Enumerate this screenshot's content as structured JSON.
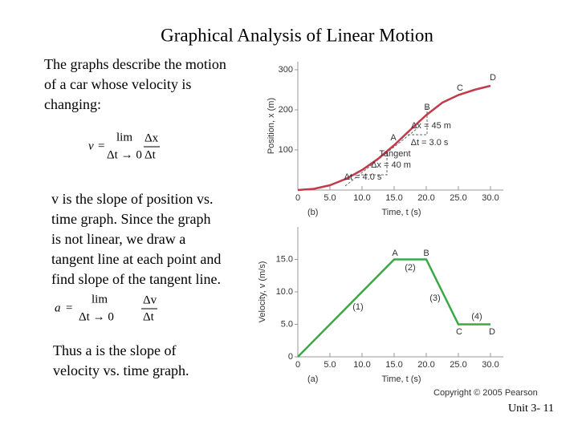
{
  "title": "Graphical Analysis of Linear Motion",
  "intro": [
    "The graphs describe the motion",
    "of a car whose velocity is",
    "changing:"
  ],
  "formula_v": {
    "lhs": "v",
    "eq": "=",
    "op": "lim",
    "limit": "Δt → 0",
    "num": "Δx",
    "den": "Δt"
  },
  "paragraph_v": [
    "v is the slope of position vs.",
    "time graph.  Since the graph",
    "is not linear, we draw a",
    "tangent line at each point and",
    "find slope of the tangent line."
  ],
  "formula_a": {
    "lhs": "a",
    "eq": "=",
    "op": "lim",
    "limit": "Δt → 0",
    "num": "Δv",
    "den": "Δt"
  },
  "paragraph_a": [
    "Thus a is the slope of",
    "velocity vs. time graph."
  ],
  "copyright": "Copyright © 2005 Pearson",
  "footer": "Unit 3- 11",
  "chart_data": [
    {
      "type": "line",
      "panel_label": "(b)",
      "x_label": "Time, t (s)",
      "y_label": "Position, x (m)",
      "x": [
        0,
        2.5,
        5,
        7.5,
        10,
        12.5,
        15,
        17.5,
        20,
        22.5,
        25,
        27.5,
        30
      ],
      "series": [
        {
          "color": "#c23b4b",
          "values": [
            0,
            3,
            12,
            28,
            50,
            78,
            112,
            150,
            187,
            218,
            237,
            250,
            260
          ]
        }
      ],
      "xlim": [
        0,
        32
      ],
      "ylim": [
        0,
        320
      ],
      "xticks": [
        0,
        {
          "value": 5,
          "label": "5.0"
        },
        {
          "value": 10,
          "label": "10.0"
        },
        {
          "value": 15,
          "label": "15.0"
        },
        {
          "value": 20,
          "label": "20.0"
        },
        {
          "value": 25,
          "label": "25.0"
        },
        {
          "value": 30,
          "label": "30.0"
        }
      ],
      "yticks": [
        100,
        200,
        300
      ],
      "annotations": [
        "A",
        "B",
        "C",
        "D",
        "Δx = 45 m",
        "Δt = 3.0 s",
        "Tangent",
        "Δx = 40 m",
        "Δt = 4.0 s"
      ]
    },
    {
      "type": "line",
      "panel_label": "(a)",
      "x_label": "Time, t (s)",
      "y_label": "Velocity, v (m/s)",
      "x": [
        0,
        15,
        20,
        25,
        30
      ],
      "series": [
        {
          "color": "#3aa845",
          "values": [
            0,
            15,
            15,
            5,
            5
          ]
        }
      ],
      "xlim": [
        0,
        32
      ],
      "ylim": [
        0,
        20
      ],
      "xticks": [
        0,
        {
          "value": 5,
          "label": "5.0"
        },
        {
          "value": 10,
          "label": "10.0"
        },
        {
          "value": 15,
          "label": "15.0"
        },
        {
          "value": 20,
          "label": "20.0"
        },
        {
          "value": 25,
          "label": "25.0"
        },
        {
          "value": 30,
          "label": "30.0"
        }
      ],
      "yticks": [
        0,
        {
          "value": 5,
          "label": "5.0"
        },
        {
          "value": 10,
          "label": "10.0"
        },
        {
          "value": 15,
          "label": "15.0"
        }
      ],
      "annotations": [
        "A",
        "B",
        "C",
        "D",
        "(1)",
        "(2)",
        "(3)",
        "(4)"
      ]
    }
  ]
}
